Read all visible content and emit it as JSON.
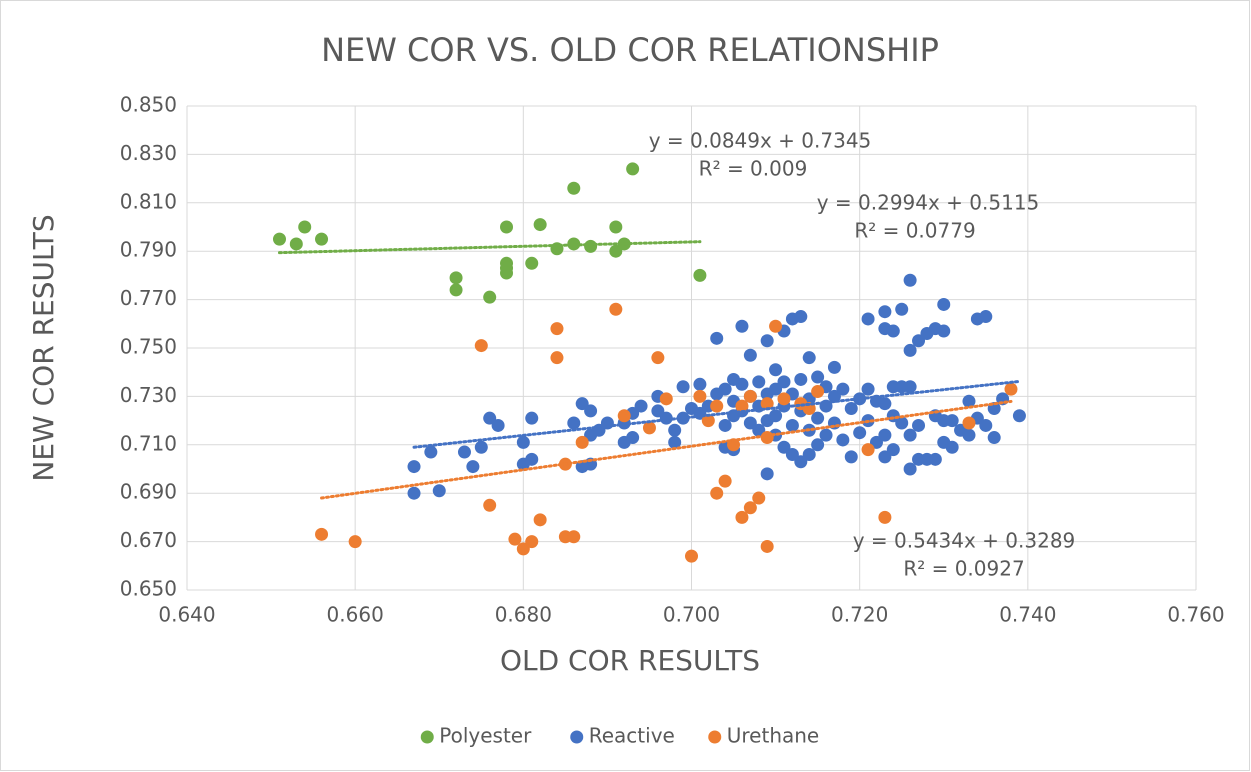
{
  "chart_data": {
    "type": "scatter",
    "title": "NEW COR VS. OLD COR RELATIONSHIP",
    "xlabel": "OLD COR RESULTS",
    "ylabel": "NEW COR RESULTS",
    "xlim": [
      0.64,
      0.76
    ],
    "xticks": [
      {
        "value": 0.64,
        "label": "0.640"
      },
      {
        "value": 0.66,
        "label": "0.660"
      },
      {
        "value": 0.68,
        "label": "0.680"
      },
      {
        "value": 0.7,
        "label": "0.700"
      },
      {
        "value": 0.72,
        "label": "0.720"
      },
      {
        "value": 0.74,
        "label": "0.740"
      },
      {
        "value": 0.76,
        "label": "0.760"
      }
    ],
    "ylim": [
      0.65,
      0.85
    ],
    "yticks": [
      {
        "value": 0.65,
        "label": "0.650"
      },
      {
        "value": 0.67,
        "label": "0.670"
      },
      {
        "value": 0.69,
        "label": "0.690"
      },
      {
        "value": 0.71,
        "label": "0.710"
      },
      {
        "value": 0.73,
        "label": "0.730"
      },
      {
        "value": 0.75,
        "label": "0.750"
      },
      {
        "value": 0.77,
        "label": "0.770"
      },
      {
        "value": 0.79,
        "label": "0.790"
      },
      {
        "value": 0.81,
        "label": "0.810"
      },
      {
        "value": 0.83,
        "label": "0.830"
      },
      {
        "value": 0.85,
        "label": "0.850"
      }
    ],
    "grid": true,
    "legend": "bottom",
    "trendline": true,
    "annotations": [
      "y = 0.0849x + 0.7345",
      "R² = 0.009",
      "y = 0.2994x + 0.5115",
      "R² = 0.0779",
      "y = 0.5434x + 0.3289",
      "R² = 0.0927"
    ],
    "series": [
      {
        "name": "Polyester",
        "color": "#70ad47",
        "x": [
          0.651,
          0.654,
          0.653,
          0.656,
          0.672,
          0.672,
          0.676,
          0.678,
          0.678,
          0.678,
          0.678,
          0.682,
          0.681,
          0.684,
          0.686,
          0.686,
          0.688,
          0.691,
          0.691,
          0.692,
          0.693,
          0.701
        ],
        "values": [
          0.795,
          0.8,
          0.793,
          0.795,
          0.779,
          0.774,
          0.771,
          0.8,
          0.785,
          0.783,
          0.781,
          0.801,
          0.785,
          0.791,
          0.816,
          0.793,
          0.792,
          0.8,
          0.79,
          0.793,
          0.824,
          0.78
        ]
      },
      {
        "name": "Reactive",
        "color": "#4472c4",
        "x": [
          0.667,
          0.667,
          0.669,
          0.67,
          0.673,
          0.674,
          0.675,
          0.676,
          0.677,
          0.68,
          0.68,
          0.681,
          0.681,
          0.686,
          0.687,
          0.687,
          0.688,
          0.688,
          0.688,
          0.689,
          0.69,
          0.692,
          0.692,
          0.693,
          0.693,
          0.694,
          0.696,
          0.696,
          0.697,
          0.698,
          0.698,
          0.699,
          0.699,
          0.7,
          0.701,
          0.701,
          0.702,
          0.703,
          0.703,
          0.704,
          0.704,
          0.704,
          0.705,
          0.705,
          0.705,
          0.705,
          0.706,
          0.706,
          0.706,
          0.707,
          0.707,
          0.707,
          0.708,
          0.708,
          0.708,
          0.709,
          0.709,
          0.709,
          0.709,
          0.71,
          0.71,
          0.71,
          0.71,
          0.711,
          0.711,
          0.711,
          0.711,
          0.712,
          0.712,
          0.712,
          0.712,
          0.713,
          0.713,
          0.713,
          0.713,
          0.714,
          0.714,
          0.714,
          0.714,
          0.715,
          0.715,
          0.715,
          0.716,
          0.716,
          0.716,
          0.717,
          0.717,
          0.717,
          0.718,
          0.718,
          0.719,
          0.719,
          0.72,
          0.72,
          0.721,
          0.721,
          0.721,
          0.722,
          0.722,
          0.723,
          0.723,
          0.723,
          0.723,
          0.723,
          0.724,
          0.724,
          0.724,
          0.724,
          0.725,
          0.725,
          0.725,
          0.726,
          0.726,
          0.726,
          0.726,
          0.726,
          0.727,
          0.727,
          0.727,
          0.728,
          0.728,
          0.729,
          0.729,
          0.729,
          0.73,
          0.73,
          0.73,
          0.73,
          0.731,
          0.731,
          0.732,
          0.733,
          0.733,
          0.734,
          0.734,
          0.735,
          0.735,
          0.736,
          0.736,
          0.737,
          0.739
        ],
        "values": [
          0.701,
          0.69,
          0.707,
          0.691,
          0.707,
          0.701,
          0.709,
          0.721,
          0.718,
          0.711,
          0.702,
          0.704,
          0.721,
          0.719,
          0.727,
          0.701,
          0.724,
          0.702,
          0.714,
          0.716,
          0.719,
          0.711,
          0.719,
          0.723,
          0.713,
          0.726,
          0.73,
          0.724,
          0.721,
          0.711,
          0.716,
          0.734,
          0.721,
          0.725,
          0.735,
          0.723,
          0.726,
          0.754,
          0.731,
          0.733,
          0.718,
          0.709,
          0.737,
          0.728,
          0.722,
          0.708,
          0.759,
          0.735,
          0.724,
          0.73,
          0.719,
          0.747,
          0.736,
          0.726,
          0.716,
          0.753,
          0.731,
          0.72,
          0.698,
          0.741,
          0.733,
          0.722,
          0.714,
          0.757,
          0.736,
          0.726,
          0.709,
          0.762,
          0.731,
          0.718,
          0.706,
          0.763,
          0.737,
          0.724,
          0.703,
          0.746,
          0.729,
          0.716,
          0.706,
          0.738,
          0.721,
          0.71,
          0.734,
          0.726,
          0.714,
          0.742,
          0.73,
          0.719,
          0.712,
          0.733,
          0.725,
          0.705,
          0.729,
          0.715,
          0.762,
          0.733,
          0.72,
          0.728,
          0.711,
          0.765,
          0.758,
          0.727,
          0.714,
          0.705,
          0.757,
          0.734,
          0.722,
          0.708,
          0.766,
          0.734,
          0.719,
          0.778,
          0.749,
          0.734,
          0.714,
          0.7,
          0.753,
          0.718,
          0.704,
          0.756,
          0.704,
          0.758,
          0.722,
          0.704,
          0.768,
          0.757,
          0.72,
          0.711,
          0.709,
          0.72,
          0.716,
          0.728,
          0.714,
          0.762,
          0.721,
          0.763,
          0.718,
          0.713,
          0.725,
          0.729,
          0.722
        ]
      },
      {
        "name": "Urethane",
        "color": "#ed7d31",
        "x": [
          0.656,
          0.66,
          0.675,
          0.676,
          0.679,
          0.68,
          0.681,
          0.682,
          0.684,
          0.684,
          0.685,
          0.685,
          0.686,
          0.687,
          0.691,
          0.692,
          0.695,
          0.696,
          0.697,
          0.7,
          0.701,
          0.702,
          0.703,
          0.703,
          0.704,
          0.705,
          0.706,
          0.706,
          0.707,
          0.707,
          0.708,
          0.709,
          0.709,
          0.709,
          0.71,
          0.711,
          0.713,
          0.714,
          0.715,
          0.721,
          0.723,
          0.733,
          0.738
        ],
        "values": [
          0.673,
          0.67,
          0.751,
          0.685,
          0.671,
          0.667,
          0.67,
          0.679,
          0.758,
          0.746,
          0.672,
          0.702,
          0.672,
          0.711,
          0.766,
          0.722,
          0.717,
          0.746,
          0.729,
          0.664,
          0.73,
          0.72,
          0.726,
          0.69,
          0.695,
          0.71,
          0.68,
          0.726,
          0.684,
          0.73,
          0.688,
          0.668,
          0.727,
          0.713,
          0.759,
          0.729,
          0.727,
          0.725,
          0.732,
          0.708,
          0.68,
          0.719,
          0.733
        ]
      }
    ]
  }
}
